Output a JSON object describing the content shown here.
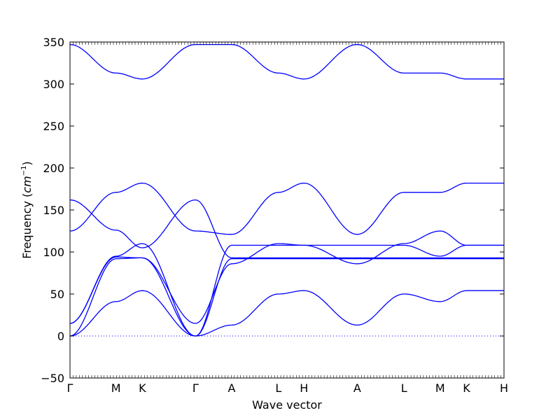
{
  "chart_data": {
    "type": "line",
    "xlabel": "Wave vector",
    "ylabel": "Frequency ($cm^{-1}$)",
    "ylabel_parts": {
      "text": "Frequency (",
      "math": "cm",
      "sup": "−1",
      "close": ")"
    },
    "ylim": [
      -50,
      350
    ],
    "yticks": [
      -50,
      0,
      50,
      100,
      150,
      200,
      250,
      300,
      350
    ],
    "ytick_labels": [
      "−50",
      "0",
      "50",
      "100",
      "150",
      "200",
      "250",
      "300",
      "350"
    ],
    "xlim": [
      0,
      10.2
    ],
    "xticks": [
      {
        "pos": 0,
        "label": "Γ"
      },
      {
        "pos": 1.08,
        "label": "M"
      },
      {
        "pos": 1.7,
        "label": "K"
      },
      {
        "pos": 2.95,
        "label": "Γ"
      },
      {
        "pos": 3.8,
        "label": "A"
      },
      {
        "pos": 4.9,
        "label": "L"
      },
      {
        "pos": 5.5,
        "label": "H"
      },
      {
        "pos": 6.75,
        "label": "A"
      },
      {
        "pos": 7.85,
        "label": "L"
      },
      {
        "pos": 8.7,
        "label": "M"
      },
      {
        "pos": 9.32,
        "label": "K"
      },
      {
        "pos": 10.2,
        "label": "H"
      }
    ],
    "zero_line": {
      "value": 0,
      "style": "dotted"
    },
    "grid": false,
    "series_color": "#0000ff",
    "series": [
      {
        "x": [
          0,
          1.08,
          1.7,
          2.95,
          3.8,
          4.9,
          5.5,
          6.75,
          7.85,
          8.7,
          9.32,
          10.2
        ],
        "y": [
          0,
          41,
          54,
          0,
          13,
          50,
          54,
          13,
          50,
          41,
          54,
          54
        ]
      },
      {
        "x": [
          0,
          1.08,
          1.7,
          2.95,
          3.8,
          4.9,
          5.5,
          6.75,
          7.85,
          8.7,
          9.32,
          10.2
        ],
        "y": [
          0,
          92,
          93,
          0,
          92,
          92,
          92,
          92,
          92,
          92,
          92,
          92
        ]
      },
      {
        "x": [
          0,
          1.08,
          1.7,
          2.95,
          3.8,
          4.9,
          5.5,
          6.75,
          7.85,
          8.7,
          9.32,
          10.2
        ],
        "y": [
          15,
          95,
          110,
          0,
          108,
          108,
          108,
          108,
          108,
          95,
          108,
          108
        ]
      },
      {
        "x": [
          0,
          1.08,
          1.7,
          2.95,
          3.8,
          4.9,
          5.5,
          6.75,
          7.85,
          8.7,
          9.32,
          10.2
        ],
        "y": [
          15,
          94,
          93,
          15,
          86,
          110,
          108,
          86,
          110,
          125,
          108,
          108
        ]
      },
      {
        "x": [
          0,
          1.08,
          1.7,
          2.95,
          3.8,
          4.9,
          5.5,
          6.75,
          7.85,
          8.7,
          9.32,
          10.2
        ],
        "y": [
          125,
          171,
          182,
          125,
          121,
          171,
          182,
          121,
          171,
          171,
          182,
          182
        ]
      },
      {
        "x": [
          0,
          1.08,
          1.7,
          2.95,
          3.8,
          4.9,
          5.5,
          6.75,
          7.85,
          8.7,
          9.32,
          10.2
        ],
        "y": [
          162,
          126,
          105,
          162,
          93,
          93,
          93,
          93,
          93,
          93,
          93,
          93
        ]
      },
      {
        "x": [
          0,
          1.08,
          1.7,
          2.95,
          3.8,
          4.9,
          5.5,
          6.75,
          7.85,
          8.7,
          9.32,
          10.2
        ],
        "y": [
          347,
          313,
          306,
          347,
          347,
          313,
          306,
          347,
          313,
          313,
          306,
          306
        ]
      }
    ]
  }
}
